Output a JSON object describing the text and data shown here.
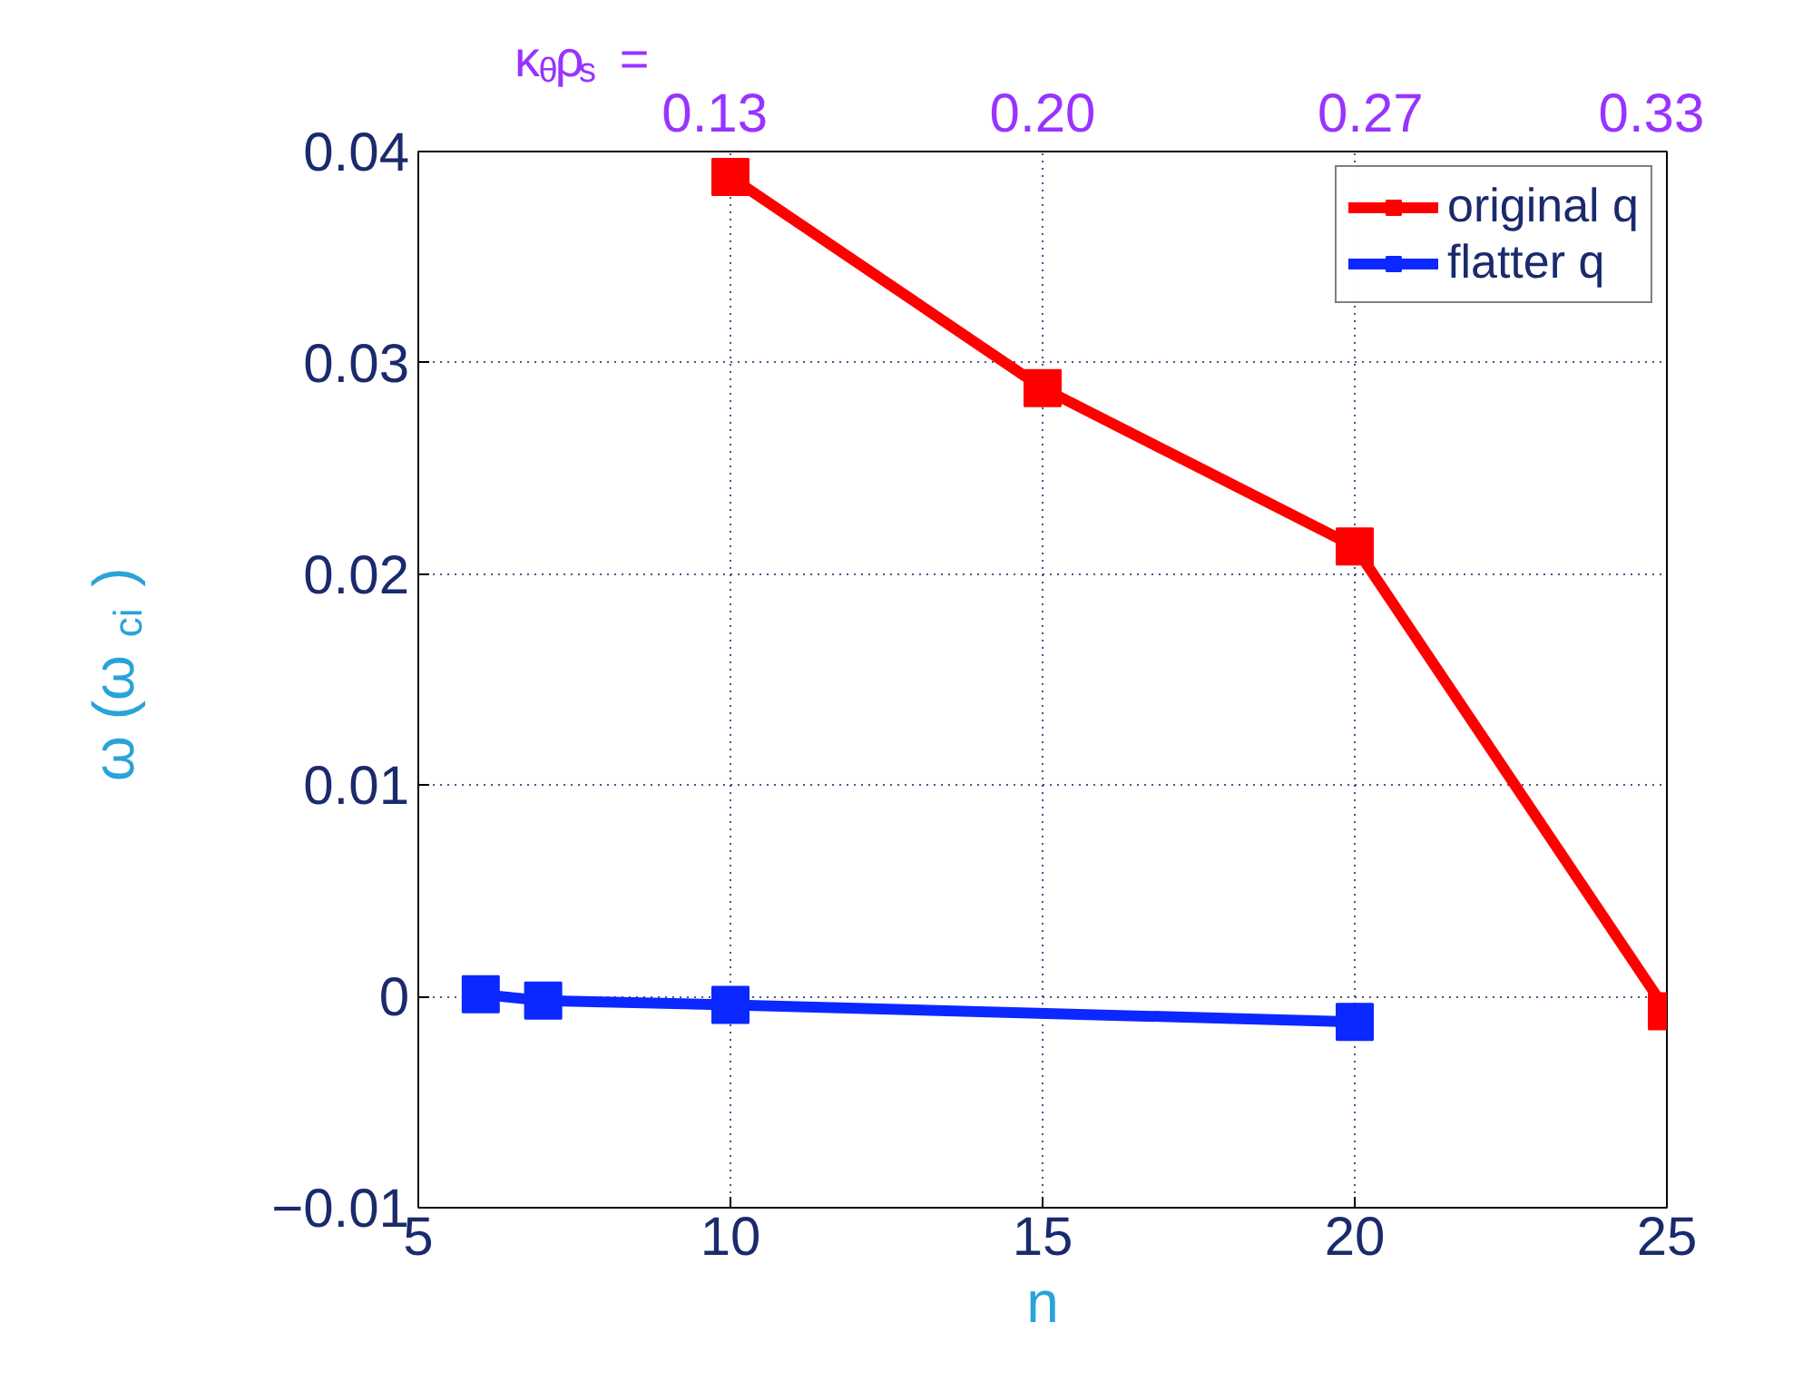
{
  "chart_data": {
    "type": "line",
    "xlabel": "n",
    "ylabel": "ω (ω$_{ci}$)",
    "x2label": "κ$_{θ}$ρ$_{s}$ =",
    "xlim": [
      5,
      25
    ],
    "xticks": [
      5,
      10,
      15,
      20,
      25
    ],
    "ylim": [
      -0.01,
      0.04
    ],
    "yticks": [
      -0.01,
      0,
      0.01,
      0.02,
      0.03,
      0.04
    ],
    "x2lim": [
      0.0667,
      0.3333
    ],
    "x2ticks": [
      0.13,
      {
        "value": 0.2,
        "label": "0.20"
      },
      0.27,
      0.33
    ],
    "series": [
      {
        "name": "original q",
        "color": "#ff0000",
        "x": [
          10,
          15,
          20,
          25
        ],
        "values": [
          0.0388,
          0.0288,
          0.0213,
          -0.0007
        ]
      },
      {
        "name": "flatter q",
        "color": "#0a28ff",
        "x": [
          6,
          7,
          10,
          20
        ],
        "values": [
          0.0001,
          -0.0002,
          -0.0004,
          -0.0012
        ]
      }
    ],
    "grid": true,
    "legend": "top right",
    "marker": "square",
    "line_style": "solid"
  }
}
